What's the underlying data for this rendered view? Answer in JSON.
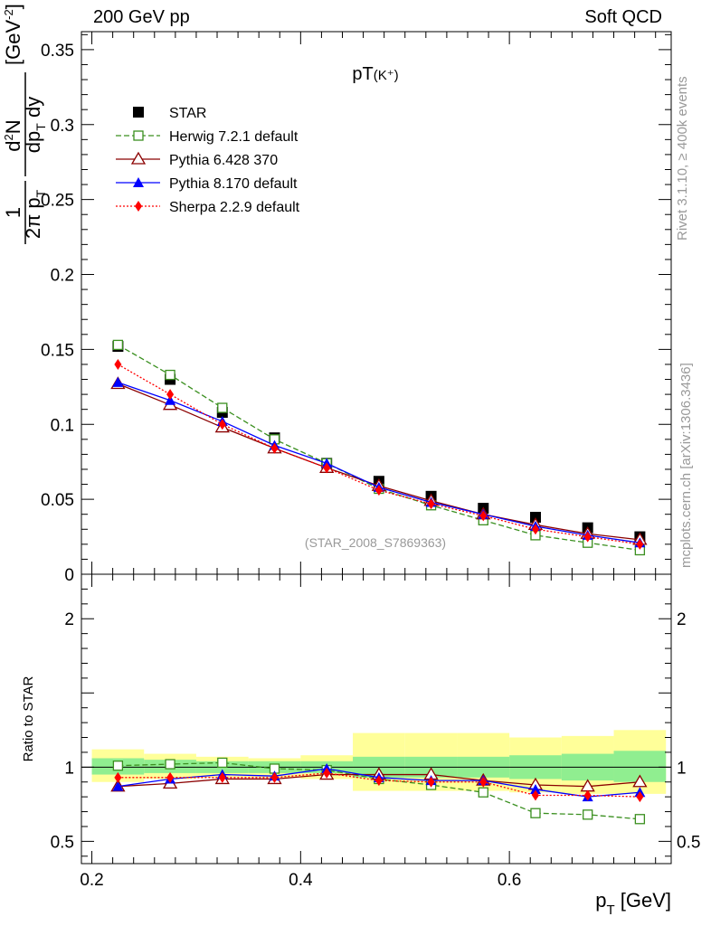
{
  "header": {
    "left": "200 GeV pp",
    "right": "Soft QCD"
  },
  "side_labels": {
    "rivet": "Rivet 3.1.10, ≥ 400k events",
    "mcplots": "mcplots.cern.ch [arXiv:1306.3436]"
  },
  "chart_data": {
    "type": "scatter",
    "title": "pT(K⁺)",
    "watermark": "(STAR_2008_S7869363)",
    "xlabel": "p_T [GeV]",
    "ylabel": "1/(2π p_T) d²N/(dp_T dy) [GeV⁻²]",
    "ratio_ylabel": "Ratio to STAR",
    "xlim": [
      0.19,
      0.755
    ],
    "ylim": [
      0,
      0.362
    ],
    "ratio_ylim": [
      0.35,
      2.3
    ],
    "x_ticks": [
      {
        "v": 0.2,
        "label": "0.2"
      },
      {
        "v": 0.4,
        "label": "0.4"
      },
      {
        "v": 0.6,
        "label": "0.6"
      }
    ],
    "y_ticks": [
      {
        "v": 0,
        "label": "0"
      },
      {
        "v": 0.05,
        "label": "0.05"
      },
      {
        "v": 0.1,
        "label": "0.1"
      },
      {
        "v": 0.15,
        "label": "0.15"
      },
      {
        "v": 0.2,
        "label": "0.2"
      },
      {
        "v": 0.25,
        "label": "0.25"
      },
      {
        "v": 0.3,
        "label": "0.3"
      },
      {
        "v": 0.35,
        "label": "0.35"
      }
    ],
    "ratio_ticks": [
      {
        "v": 0.5,
        "label": "0.5"
      },
      {
        "v": 1,
        "label": "1"
      },
      {
        "v": 2,
        "label": "2"
      }
    ],
    "x": [
      0.225,
      0.275,
      0.325,
      0.375,
      0.425,
      0.475,
      0.525,
      0.575,
      0.625,
      0.675,
      0.725
    ],
    "bins": [
      [
        0.2,
        0.25
      ],
      [
        0.25,
        0.3
      ],
      [
        0.3,
        0.35
      ],
      [
        0.35,
        0.4
      ],
      [
        0.4,
        0.45
      ],
      [
        0.45,
        0.5
      ],
      [
        0.5,
        0.55
      ],
      [
        0.55,
        0.6
      ],
      [
        0.6,
        0.65
      ],
      [
        0.65,
        0.7
      ],
      [
        0.7,
        0.75
      ]
    ],
    "band_green": [
      [
        0.95,
        1.06
      ],
      [
        0.96,
        1.05
      ],
      [
        0.96,
        1.04
      ],
      [
        0.96,
        1.04
      ],
      [
        0.96,
        1.04
      ],
      [
        0.93,
        1.07
      ],
      [
        0.93,
        1.07
      ],
      [
        0.93,
        1.07
      ],
      [
        0.92,
        1.08
      ],
      [
        0.91,
        1.09
      ],
      [
        0.9,
        1.11
      ]
    ],
    "band_yellow": [
      [
        0.9,
        1.12
      ],
      [
        0.92,
        1.09
      ],
      [
        0.93,
        1.07
      ],
      [
        0.93,
        1.06
      ],
      [
        0.92,
        1.08
      ],
      [
        0.84,
        1.23
      ],
      [
        0.84,
        1.23
      ],
      [
        0.84,
        1.23
      ],
      [
        0.83,
        1.2
      ],
      [
        0.82,
        1.21
      ],
      [
        0.82,
        1.25
      ]
    ],
    "series": [
      {
        "name": "STAR",
        "color": "#000000",
        "marker": "square-filled",
        "line": "none",
        "values": [
          0.152,
          0.13,
          0.108,
          0.091,
          0.074,
          0.062,
          0.052,
          0.044,
          0.038,
          0.031,
          0.025
        ],
        "ratio": [
          1,
          1,
          1,
          1,
          1,
          1,
          1,
          1,
          1,
          1,
          1
        ]
      },
      {
        "name": "Herwig 7.2.1 default",
        "color": "#3a8f1f",
        "marker": "square-open",
        "line": "dashed",
        "values": [
          0.153,
          0.133,
          0.111,
          0.09,
          0.074,
          0.057,
          0.046,
          0.036,
          0.026,
          0.021,
          0.016
        ],
        "ratio": [
          1.01,
          1.02,
          1.03,
          0.99,
          0.98,
          0.92,
          0.88,
          0.83,
          0.69,
          0.68,
          0.65
        ]
      },
      {
        "name": "Pythia 6.428 370",
        "color": "#8b0000",
        "marker": "triangle-open",
        "line": "solid",
        "values": [
          0.127,
          0.113,
          0.098,
          0.084,
          0.071,
          0.059,
          0.049,
          0.04,
          0.033,
          0.027,
          0.023
        ],
        "ratio": [
          0.87,
          0.89,
          0.92,
          0.92,
          0.95,
          0.95,
          0.95,
          0.91,
          0.88,
          0.87,
          0.9
        ]
      },
      {
        "name": "Pythia 8.170 default",
        "color": "#0000ff",
        "marker": "triangle-filled",
        "line": "solid",
        "values": [
          0.128,
          0.116,
          0.102,
          0.086,
          0.074,
          0.058,
          0.048,
          0.04,
          0.032,
          0.026,
          0.021
        ],
        "ratio": [
          0.87,
          0.92,
          0.95,
          0.94,
          0.99,
          0.93,
          0.91,
          0.91,
          0.85,
          0.8,
          0.83
        ]
      },
      {
        "name": "Sherpa 2.2.9 default",
        "color": "#ff0000",
        "marker": "diamond-filled",
        "line": "dotted",
        "values": [
          0.14,
          0.12,
          0.1,
          0.084,
          0.071,
          0.056,
          0.047,
          0.039,
          0.03,
          0.025,
          0.02
        ],
        "ratio": [
          0.93,
          0.93,
          0.93,
          0.93,
          0.96,
          0.91,
          0.9,
          0.9,
          0.81,
          0.81,
          0.8
        ]
      }
    ]
  }
}
